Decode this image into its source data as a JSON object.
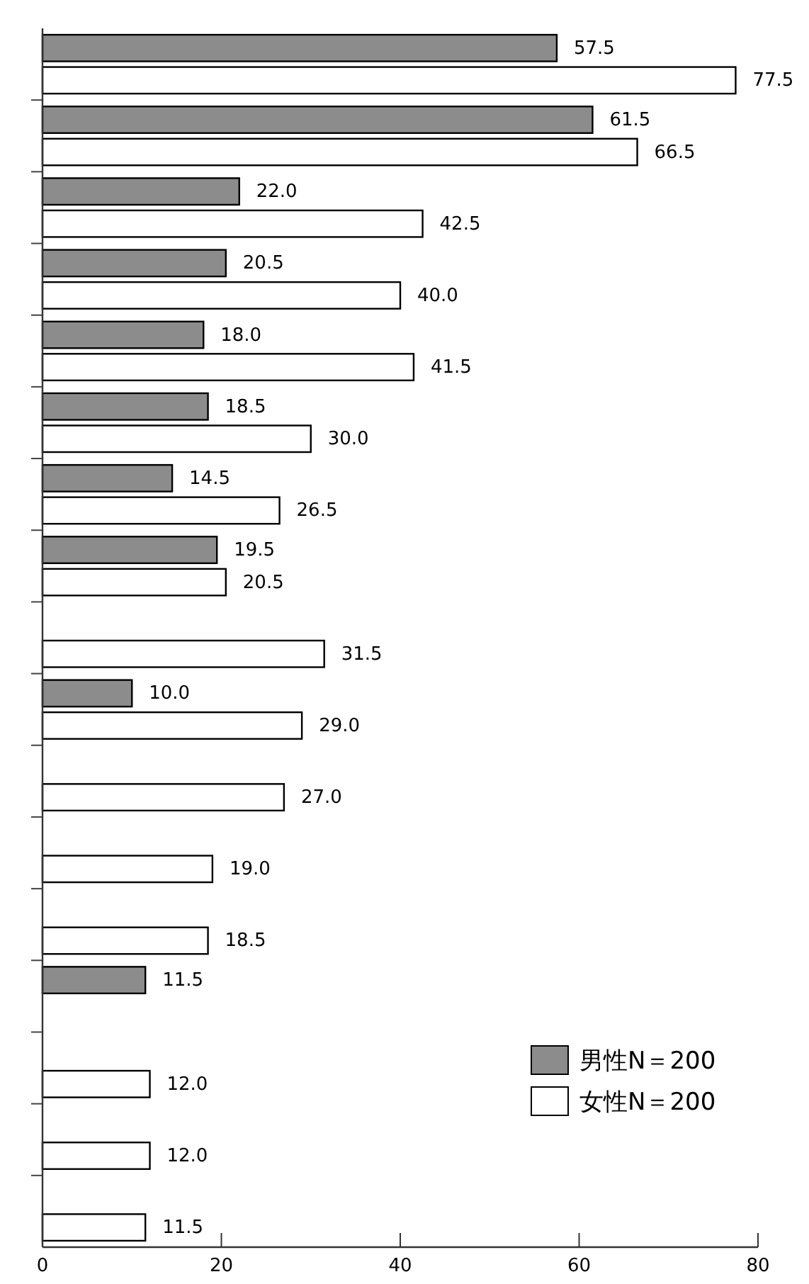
{
  "chart_data": {
    "type": "bar",
    "orientation": "horizontal",
    "categories": [
      null,
      null,
      null,
      null,
      null,
      null,
      null,
      null,
      null,
      null,
      null,
      null,
      null,
      null,
      null,
      null,
      null
    ],
    "series": [
      {
        "name": "男性N＝200",
        "color": "#8c8c8c",
        "values": [
          57.5,
          61.5,
          22.0,
          20.5,
          18.0,
          18.5,
          14.5,
          19.5,
          null,
          10.0,
          null,
          null,
          null,
          11.5,
          null,
          null,
          null
        ],
        "value_labels": [
          "57.5",
          "61.5",
          "22.0",
          "20.5",
          "18.0",
          "18.5",
          "14.5",
          "19.5",
          null,
          "10.0",
          null,
          null,
          null,
          "11.5",
          null,
          null,
          null
        ]
      },
      {
        "name": "女性N＝200",
        "color": "#ffffff",
        "values": [
          77.5,
          66.5,
          42.5,
          40.0,
          41.5,
          30.0,
          26.5,
          20.5,
          31.5,
          29.0,
          27.0,
          19.0,
          18.5,
          null,
          12.0,
          12.0,
          11.5
        ],
        "value_labels": [
          "77.5",
          "66.5",
          "42.5",
          "40.0",
          "41.5",
          "30.0",
          "26.5",
          "20.5",
          "31.5",
          "29.0",
          "27.0",
          "19.0",
          "18.5",
          null,
          "12.0",
          "12.0",
          "11.5"
        ]
      }
    ],
    "xlim": [
      0,
      80
    ],
    "xticks": [
      0,
      20,
      40,
      60,
      80
    ],
    "legend": "bottom right",
    "grid": false
  }
}
